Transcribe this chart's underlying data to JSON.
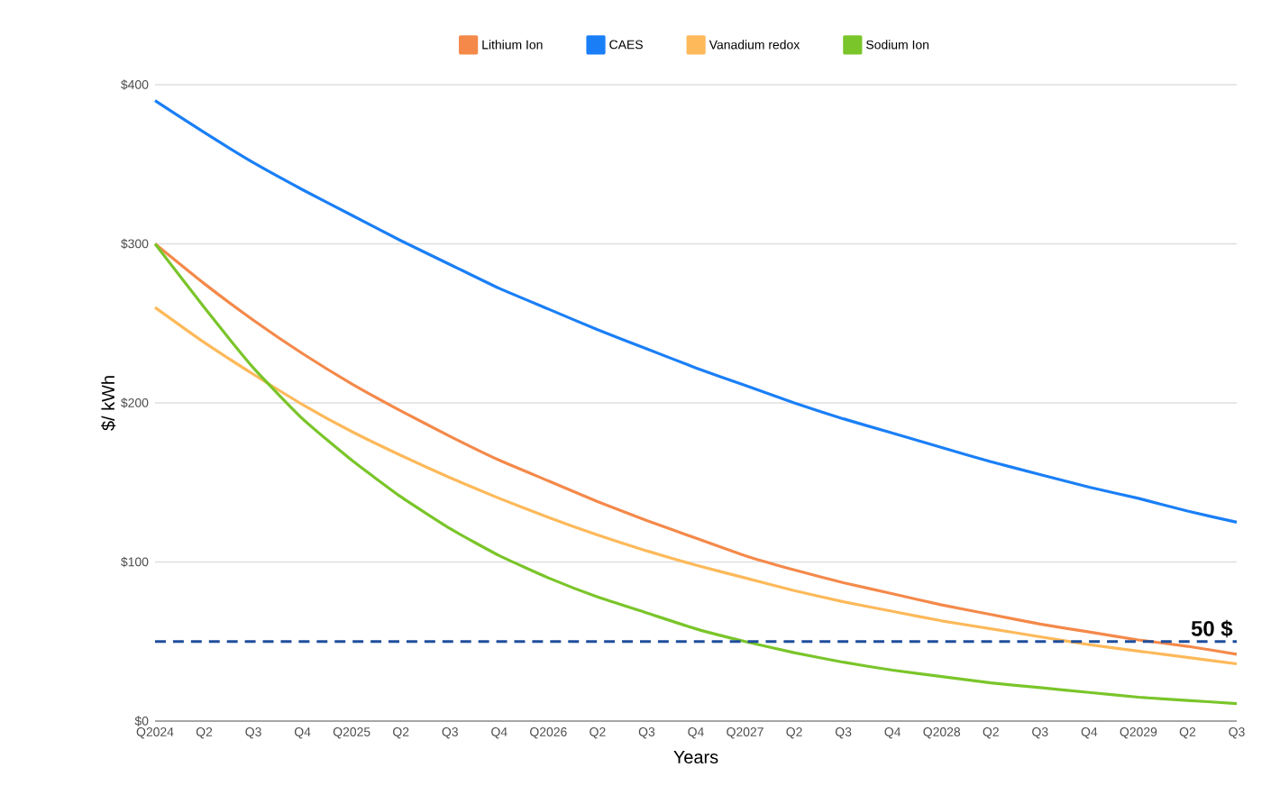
{
  "chart_data": {
    "type": "line",
    "xlabel": "Years",
    "ylabel": "$/ kWh",
    "categories": [
      "Q2024",
      "Q2",
      "Q3",
      "Q4",
      "Q2025",
      "Q2",
      "Q3",
      "Q4",
      "Q2026",
      "Q2",
      "Q3",
      "Q4",
      "Q2027",
      "Q2",
      "Q3",
      "Q4",
      "Q2028",
      "Q2",
      "Q3",
      "Q4",
      "Q2029",
      "Q2",
      "Q3"
    ],
    "series": [
      {
        "name": "Lithium Ion",
        "color": "#f4894a",
        "values": [
          300,
          275,
          252,
          231,
          212,
          195,
          179,
          164,
          151,
          138,
          126,
          115,
          104,
          95,
          87,
          80,
          73,
          67,
          61,
          56,
          51,
          47,
          42
        ]
      },
      {
        "name": "CAES",
        "color": "#1a7ff7",
        "values": [
          390,
          370,
          351,
          334,
          318,
          302,
          287,
          272,
          259,
          246,
          234,
          222,
          211,
          200,
          190,
          181,
          172,
          163,
          155,
          147,
          140,
          132,
          125
        ]
      },
      {
        "name": "Vanadium redox",
        "color": "#fdb95a",
        "values": [
          260,
          238,
          218,
          199,
          182,
          167,
          153,
          140,
          128,
          117,
          107,
          98,
          90,
          82,
          75,
          69,
          63,
          58,
          53,
          48,
          44,
          40,
          36
        ]
      },
      {
        "name": "Sodium Ion",
        "color": "#7ac52a",
        "values": [
          300,
          260,
          222,
          190,
          164,
          141,
          121,
          104,
          90,
          78,
          68,
          58,
          50,
          43,
          37,
          32,
          28,
          24,
          21,
          18,
          15,
          13,
          11
        ]
      }
    ],
    "ylim": [
      0,
      400
    ],
    "yticks": [
      {
        "value": 0,
        "label": "$0"
      },
      {
        "value": 100,
        "label": "$100"
      },
      {
        "value": 200,
        "label": "$200"
      },
      {
        "value": 300,
        "label": "$300"
      },
      {
        "value": 400,
        "label": "$400"
      }
    ],
    "ref_lines": [
      {
        "axis": "y",
        "value": 50,
        "label": "50 $",
        "color": "#1f4e9c",
        "line_style": "dashed"
      }
    ],
    "grid": "y",
    "legend": "top",
    "line_style": "solid"
  }
}
